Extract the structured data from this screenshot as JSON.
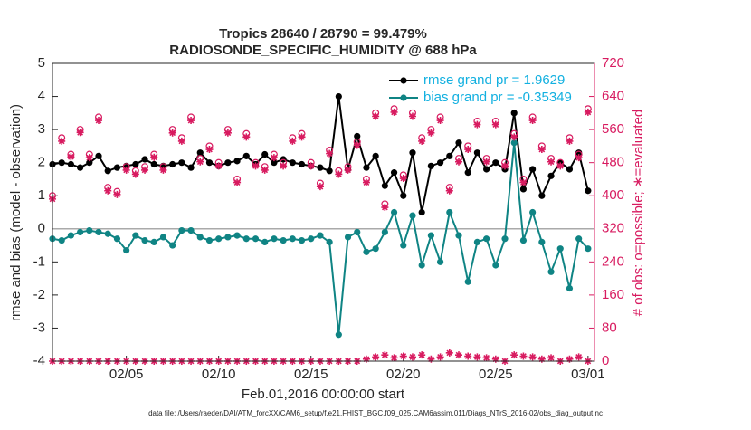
{
  "chart_data": {
    "type": "line",
    "title": "Tropics 28640 / 28790 = 99.479%",
    "subtitle": "RADIOSONDE_SPECIFIC_HUMIDITY @ 688 hPa",
    "x_label": "Feb.01,2016 00:00:00 start",
    "y_label": "rmse and bias (model - observation)",
    "y2_label": "# of obs: o=possible; ∗=evaluated",
    "footnote": "data file: /Users/raeder/DAI/ATM_forcXX/CAM6_setup/f.e21.FHIST_BGC.f09_025.CAM6assim.011/Diags_NTrS_2016-02/obs_diag_output.nc",
    "x": [
      0,
      0.5,
      1,
      1.5,
      2,
      2.5,
      3,
      3.5,
      4,
      4.5,
      5,
      5.5,
      6,
      6.5,
      7,
      7.5,
      8,
      8.5,
      9,
      9.5,
      10,
      10.5,
      11,
      11.5,
      12,
      12.5,
      13,
      13.5,
      14,
      14.5,
      15,
      15.5,
      16,
      16.5,
      17,
      17.5,
      18,
      18.5,
      19,
      19.5,
      20,
      20.5,
      21,
      21.5,
      22,
      22.5,
      23,
      23.5,
      24,
      24.5,
      25,
      25.5,
      26,
      26.5,
      27,
      27.5,
      28,
      28.5,
      29
    ],
    "xlim": [
      0,
      29.35
    ],
    "xticks": [
      {
        "value": 4,
        "label": "02/05"
      },
      {
        "value": 9,
        "label": "02/10"
      },
      {
        "value": 14,
        "label": "02/15"
      },
      {
        "value": 19,
        "label": "02/20"
      },
      {
        "value": 24,
        "label": "02/25"
      },
      {
        "value": 29,
        "label": "03/01"
      }
    ],
    "ylim": [
      -4,
      5
    ],
    "yticks": [
      -4,
      -3,
      -2,
      -1,
      0,
      1,
      2,
      3,
      4,
      5
    ],
    "y2lim": [
      0,
      720
    ],
    "y2ticks": [
      0,
      80,
      160,
      240,
      320,
      400,
      480,
      560,
      640,
      720
    ],
    "zero_line": true,
    "legend": "upper right",
    "series": [
      {
        "name": "rmse grand pr = 1.9629",
        "color": "#000000",
        "marker": "dot",
        "values": [
          1.95,
          2.0,
          1.95,
          1.85,
          2.0,
          2.2,
          1.75,
          1.85,
          1.9,
          1.95,
          2.1,
          1.95,
          1.9,
          1.95,
          2.0,
          1.85,
          2.3,
          2.0,
          1.9,
          2.0,
          2.05,
          2.2,
          1.95,
          2.25,
          2.0,
          2.1,
          2.0,
          1.95,
          1.9,
          1.85,
          1.75,
          4.0,
          1.8,
          2.8,
          1.85,
          2.2,
          1.3,
          1.7,
          1.0,
          2.3,
          0.5,
          1.9,
          2.0,
          2.2,
          2.6,
          1.7,
          2.3,
          1.8,
          2.0,
          1.8,
          3.5,
          1.2,
          1.8,
          1.0,
          1.6,
          2.0,
          1.8,
          2.3,
          1.15
        ]
      },
      {
        "name": "bias grand pr = -0.35349",
        "color": "#0f8484",
        "marker": "dot",
        "values": [
          -0.3,
          -0.35,
          -0.2,
          -0.1,
          -0.05,
          -0.1,
          -0.15,
          -0.3,
          -0.65,
          -0.2,
          -0.35,
          -0.4,
          -0.25,
          -0.5,
          -0.05,
          -0.05,
          -0.25,
          -0.35,
          -0.3,
          -0.25,
          -0.2,
          -0.3,
          -0.3,
          -0.4,
          -0.3,
          -0.35,
          -0.3,
          -0.35,
          -0.3,
          -0.2,
          -0.4,
          -3.2,
          -0.25,
          -0.1,
          -0.7,
          -0.6,
          -0.1,
          0.5,
          -0.5,
          0.4,
          -1.1,
          -0.2,
          -1.0,
          0.5,
          -0.2,
          -1.6,
          -0.4,
          -0.3,
          -1.1,
          -0.3,
          2.6,
          -0.35,
          0.5,
          -0.4,
          -1.3,
          -0.6,
          -1.8,
          -0.3,
          -0.6
        ]
      },
      {
        "color": "#d81b60",
        "marker": "circle",
        "axis": "y2",
        "values": [
          400,
          540,
          500,
          560,
          500,
          590,
          420,
          410,
          470,
          460,
          470,
          500,
          470,
          560,
          540,
          590,
          490,
          520,
          480,
          560,
          440,
          550,
          480,
          470,
          500,
          480,
          540,
          550,
          480,
          430,
          510,
          460,
          470,
          530,
          440,
          600,
          380,
          610,
          450,
          600,
          540,
          560,
          590,
          420,
          490,
          520,
          580,
          490,
          580,
          480,
          550,
          440,
          590,
          520,
          490,
          480,
          540,
          500,
          610
        ]
      },
      {
        "color": "#d81b60",
        "marker": "star",
        "axis": "y2",
        "values": [
          392,
          532,
          494,
          553,
          492,
          582,
          412,
          403,
          462,
          452,
          462,
          493,
          462,
          552,
          532,
          582,
          482,
          512,
          472,
          552,
          432,
          542,
          472,
          462,
          492,
          472,
          532,
          542,
          472,
          422,
          502,
          452,
          462,
          522,
          432,
          592,
          372,
          602,
          442,
          592,
          532,
          552,
          582,
          412,
          482,
          512,
          572,
          482,
          572,
          472,
          542,
          432,
          582,
          512,
          482,
          472,
          532,
          492,
          602
        ]
      },
      {
        "color": "#d81b60",
        "marker": "star",
        "axis": "y2",
        "values": [
          0,
          0,
          0,
          0,
          0,
          0,
          0,
          0,
          0,
          0,
          0,
          0,
          0,
          0,
          0,
          0,
          0,
          0,
          0,
          0,
          0,
          0,
          0,
          0,
          0,
          0,
          0,
          0,
          0,
          0,
          0,
          0,
          0,
          0,
          5,
          10,
          15,
          8,
          12,
          10,
          15,
          5,
          10,
          20,
          15,
          12,
          10,
          8,
          5,
          0,
          15,
          12,
          10,
          5,
          8,
          0,
          5,
          10,
          0
        ]
      }
    ]
  }
}
